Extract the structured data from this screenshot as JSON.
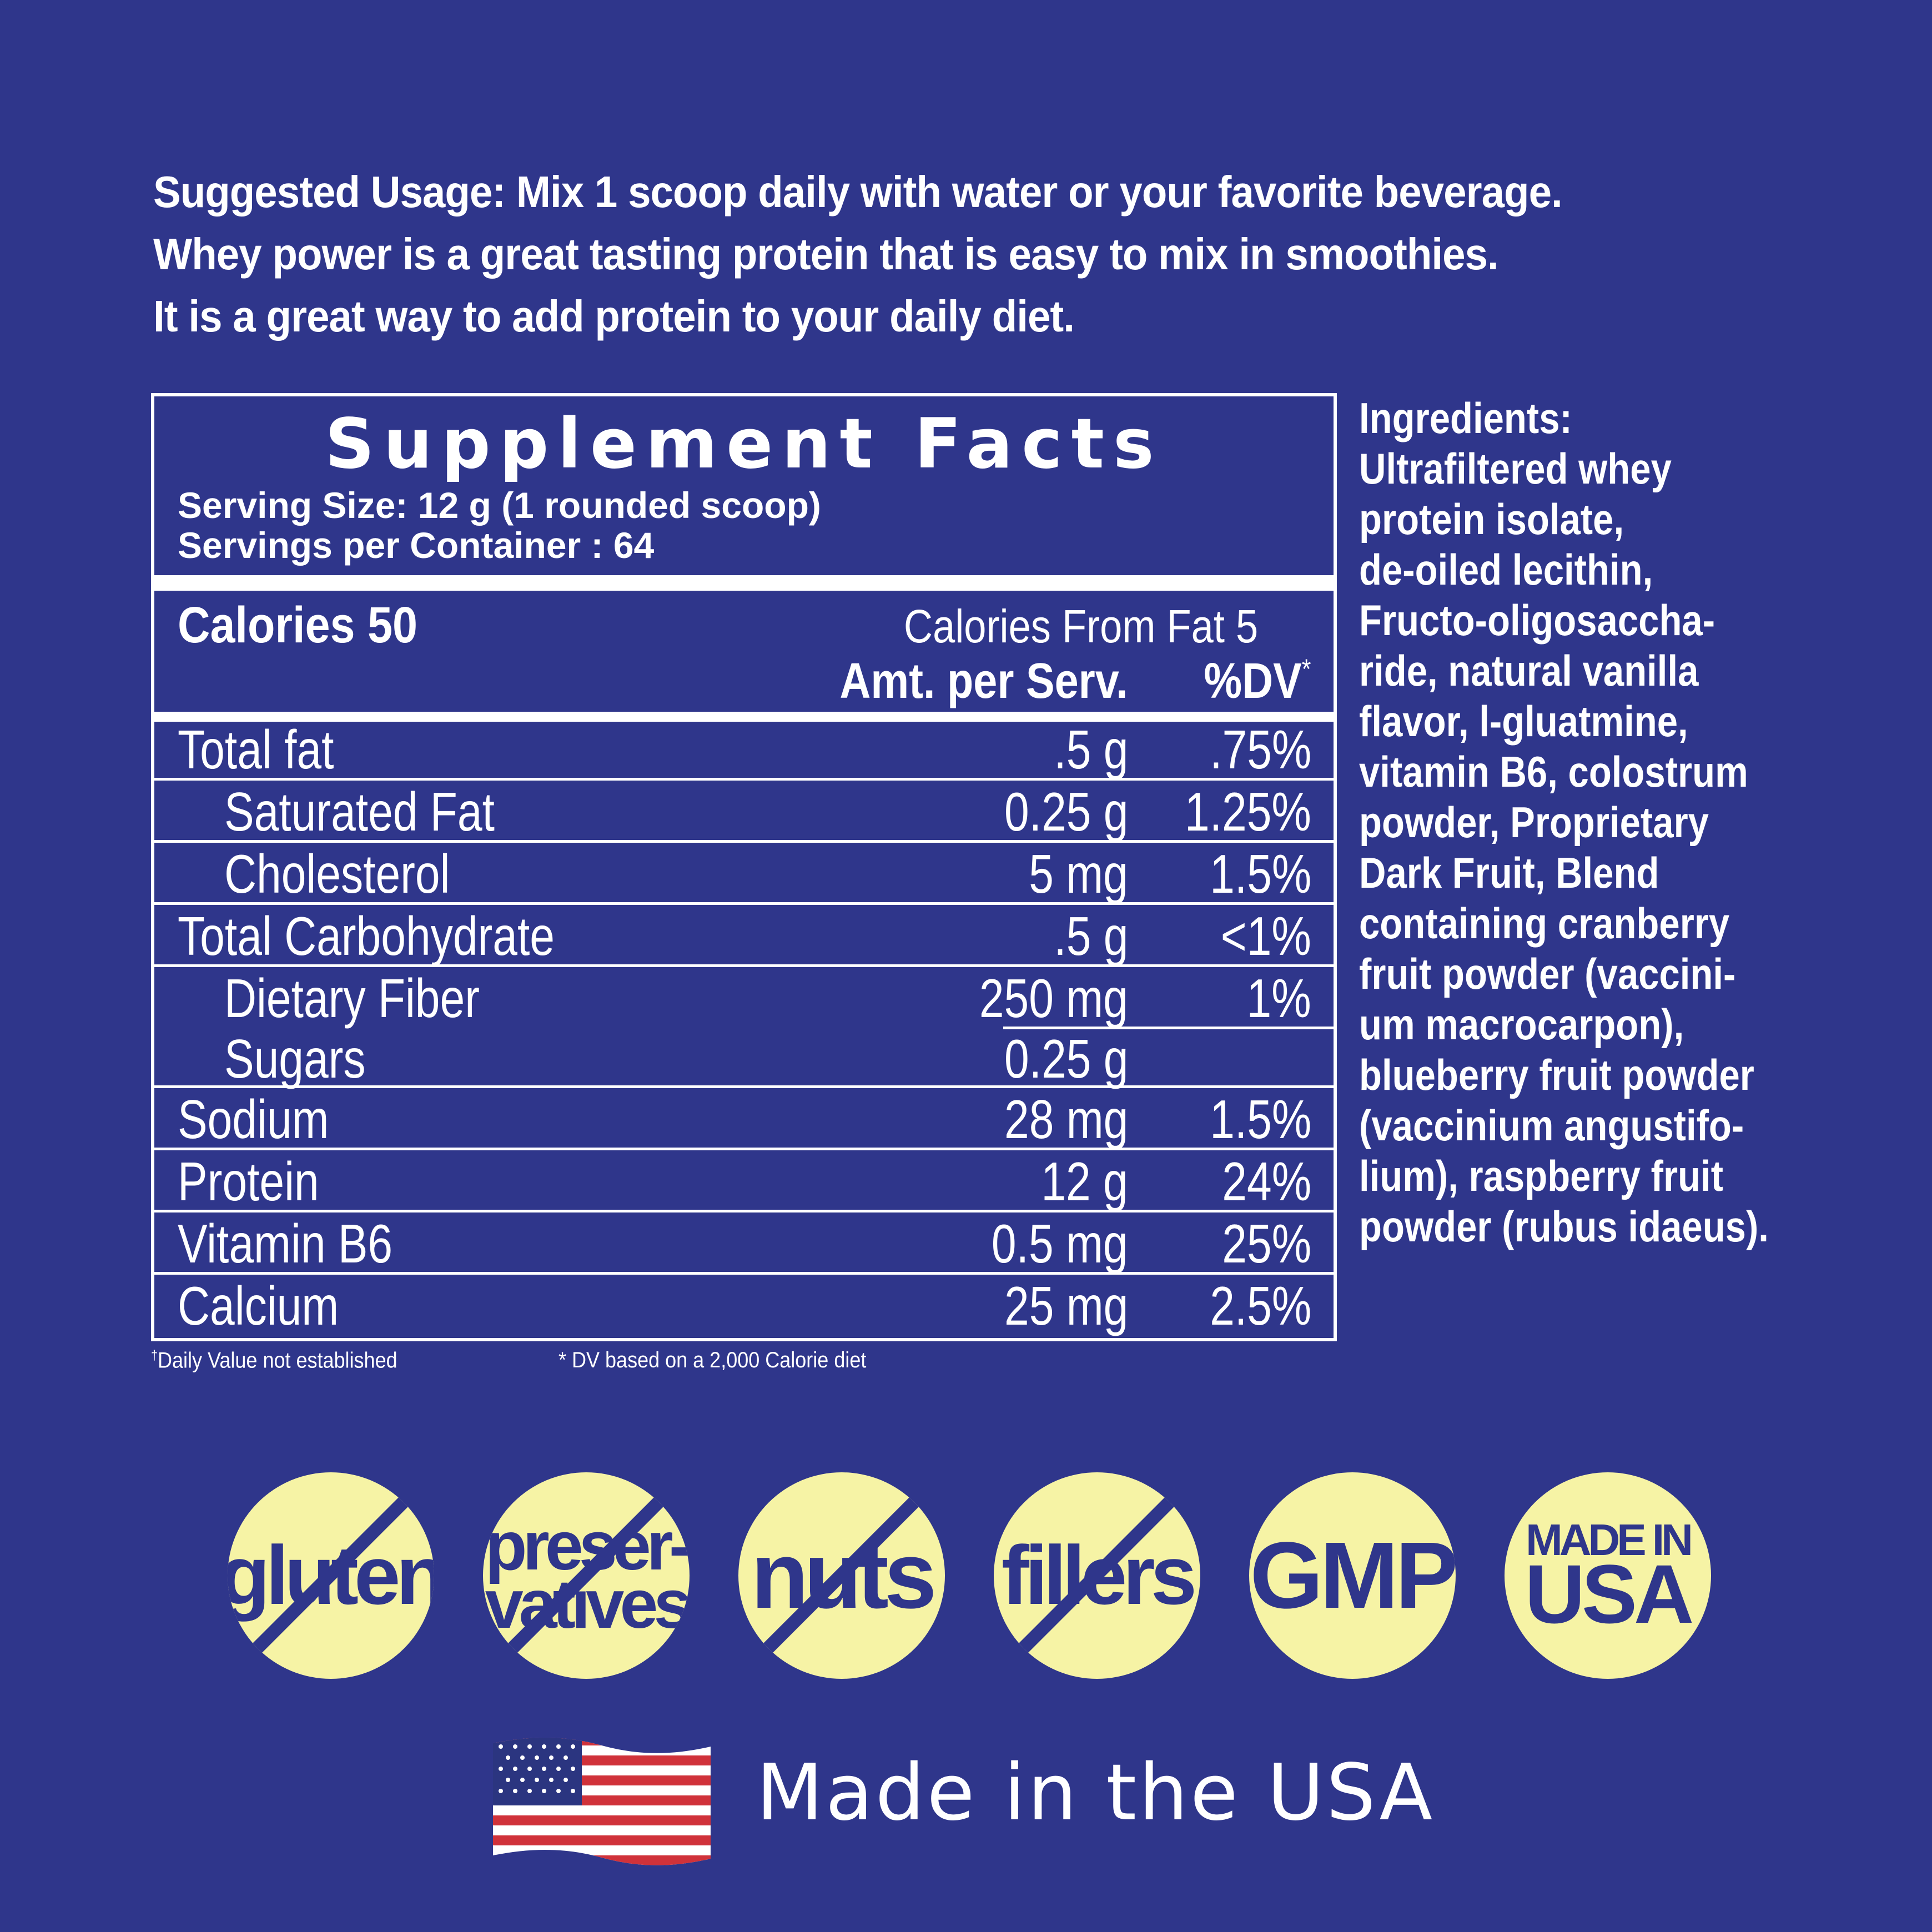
{
  "usage": {
    "lines": [
      "Suggested Usage: Mix 1 scoop daily with water or your favorite beverage.",
      "Whey power is a great tasting protein that is easy to mix in smoothies.",
      "It is a great way to add protein to your daily diet."
    ]
  },
  "facts": {
    "title": "Supplement Facts",
    "serving_size": "Serving Size:  12 g (1 rounded scoop)",
    "servings_per_container": "Servings per Container : 64",
    "calories": "Calories 50",
    "calories_from_fat": "Calories From Fat 5",
    "amount_header": "Amt. per Serv.",
    "dv_header": "%DV",
    "dv_symbol": "*",
    "rows": [
      {
        "name": "Total fat",
        "amount": ".5 g",
        "dv": ".75%"
      },
      {
        "name": "Saturated Fat",
        "amount": "0.25 g",
        "dv": "1.25%"
      },
      {
        "name": "Cholesterol",
        "amount": "5 mg",
        "dv": "1.5%"
      },
      {
        "name": "Total Carbohydrate",
        "amount": ".5 g",
        "dv": "<1%"
      },
      {
        "name": "Dietary Fiber",
        "amount": "250 mg",
        "dv": "1%"
      },
      {
        "name": "Sugars",
        "amount": "0.25 g",
        "dv": ""
      },
      {
        "name": "Sodium",
        "amount": "28 mg",
        "dv": "1.5%"
      },
      {
        "name": "Protein",
        "amount": "12 g",
        "dv": "24%"
      },
      {
        "name": "Vitamin B6",
        "amount": "0.5 mg",
        "dv": "25%"
      },
      {
        "name": "Calcium",
        "amount": "25 mg",
        "dv": "2.5%"
      }
    ],
    "footnote_dagger_symbol": "†",
    "footnote_dagger": "Daily Value not established",
    "footnote_dv": "* DV based on a 2,000 Calorie diet"
  },
  "ingredients": {
    "lines": [
      "Ingredients:",
      "Ultrafiltered whey",
      "protein isolate,",
      "de-oiled lecithin,",
      "Fructo-oligosaccha-",
      "ride, natural vanilla",
      "flavor, l-gluatmine,",
      "vitamin B6, colostrum",
      "powder, Proprietary",
      "Dark Fruit, Blend",
      "containing cranberry",
      "fruit powder (vaccini-",
      "um macrocarpon),",
      "blueberry fruit powder",
      "(vaccinium angustifo-",
      "lium), raspberry fruit",
      "powder (rubus idaeus)."
    ]
  },
  "badges": [
    {
      "lines": [
        "gluten"
      ],
      "crossed": true
    },
    {
      "lines": [
        "preser-",
        "vatives"
      ],
      "crossed": true
    },
    {
      "lines": [
        "nuts"
      ],
      "crossed": true
    },
    {
      "lines": [
        "fillers"
      ],
      "crossed": true
    },
    {
      "lines": [
        "GMP"
      ],
      "crossed": false
    },
    {
      "lines": [
        "MADE IN",
        "USA"
      ],
      "crossed": false
    }
  ],
  "made_in": "Made in the USA",
  "colors": {
    "background": "#2f368b",
    "badge": "#f6f3a5",
    "text": "#ffffff",
    "flag_red": "#d0323a",
    "flag_blue": "#2b3580"
  },
  "icons": {
    "flag": "us-flag-icon"
  }
}
